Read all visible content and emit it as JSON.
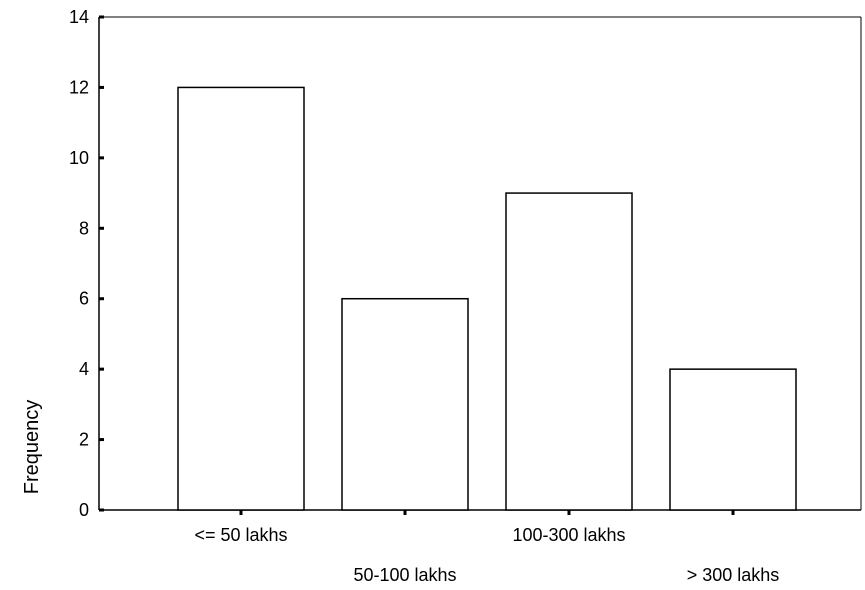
{
  "chart_data": {
    "type": "bar",
    "title": "",
    "xlabel": "",
    "ylabel": "Frequency",
    "categories": [
      "<= 50 lakhs",
      "50-100 lakhs",
      "100-300 lakhs",
      "> 300 lakhs"
    ],
    "values": [
      12,
      6,
      9,
      4
    ],
    "ylim": [
      0,
      14
    ],
    "yticks": [
      0,
      2,
      4,
      6,
      8,
      10,
      12,
      14
    ],
    "grid": false,
    "colors": {
      "bar_fill": "#ffffff",
      "bar_stroke": "#000000",
      "axis": "#000000"
    }
  }
}
